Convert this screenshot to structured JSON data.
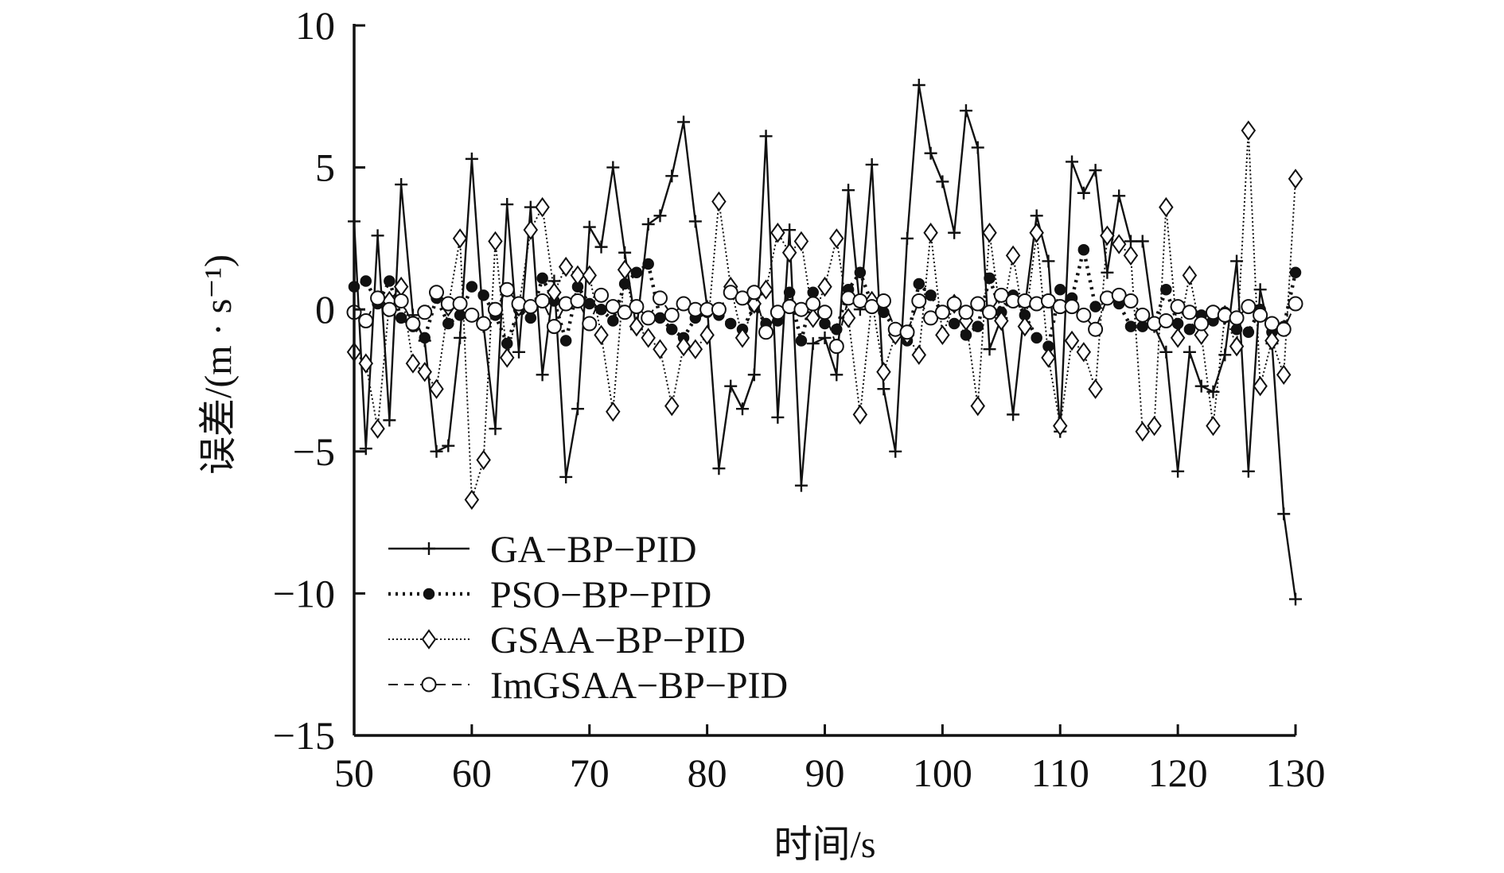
{
  "chart_data": {
    "type": "line",
    "title": "",
    "xlabel": "时间/s",
    "ylabel": "误差/(m · s⁻¹)",
    "xlim": [
      50,
      130
    ],
    "ylim": [
      -15,
      10
    ],
    "x_ticks": [
      50,
      60,
      70,
      80,
      90,
      100,
      110,
      120,
      130
    ],
    "x_tick_labels": [
      "50",
      "60",
      "70",
      "80",
      "90",
      "100",
      "110",
      "120",
      "130"
    ],
    "y_ticks": [
      10,
      5,
      0,
      -5,
      -10,
      -15
    ],
    "y_tick_labels": [
      "10",
      "5",
      "0",
      "−5",
      "−10",
      "−15"
    ],
    "grid": false,
    "legend_position": "bottom-left",
    "x": [
      50,
      51,
      52,
      53,
      54,
      55,
      56,
      57,
      58,
      59,
      60,
      61,
      62,
      63,
      64,
      65,
      66,
      67,
      68,
      69,
      70,
      71,
      72,
      73,
      74,
      75,
      76,
      77,
      78,
      79,
      80,
      81,
      82,
      83,
      84,
      85,
      86,
      87,
      88,
      89,
      90,
      91,
      92,
      93,
      94,
      95,
      96,
      97,
      98,
      99,
      100,
      101,
      102,
      103,
      104,
      105,
      106,
      107,
      108,
      109,
      110,
      111,
      112,
      113,
      114,
      115,
      116,
      117,
      118,
      119,
      120,
      121,
      122,
      123,
      124,
      125,
      126,
      127,
      128,
      129,
      130
    ],
    "series": [
      {
        "name": "GA−BP−PID",
        "marker": "plus",
        "dash": "solid",
        "values": [
          3.1,
          -4.9,
          2.6,
          -3.9,
          4.4,
          -0.2,
          -1.1,
          -5.0,
          -4.8,
          -1.0,
          5.3,
          -0.6,
          -4.2,
          3.7,
          -1.5,
          3.6,
          -2.3,
          1.0,
          -5.9,
          -3.5,
          2.9,
          2.2,
          5.0,
          2.0,
          -0.7,
          3.0,
          3.3,
          4.7,
          6.6,
          3.1,
          0.1,
          -5.6,
          -2.7,
          -3.5,
          -2.3,
          6.1,
          -3.8,
          2.8,
          -6.2,
          -1.2,
          -1.0,
          -2.3,
          4.2,
          0.0,
          5.1,
          -2.8,
          -5.0,
          2.5,
          7.9,
          5.5,
          4.5,
          2.7,
          7.0,
          5.7,
          -1.4,
          -0.3,
          -3.7,
          0.1,
          3.3,
          1.7,
          -4.3,
          5.2,
          4.1,
          4.9,
          1.3,
          4.0,
          2.4,
          2.4,
          -0.6,
          -1.5,
          -5.7,
          -1.5,
          -2.7,
          -2.9,
          -1.6,
          1.7,
          -5.7,
          0.7,
          -1.2,
          -7.2,
          -10.2
        ]
      },
      {
        "name": "PSO−BP−PID",
        "marker": "filled-circle",
        "dash": "dotted",
        "values": [
          0.8,
          1.0,
          0.2,
          1.0,
          -0.3,
          -0.6,
          -1.0,
          0.4,
          -0.5,
          -0.2,
          0.8,
          0.5,
          -0.2,
          -1.2,
          0.0,
          -0.3,
          1.1,
          0.3,
          -1.1,
          0.8,
          0.2,
          0.0,
          -0.4,
          0.9,
          1.3,
          1.6,
          -0.3,
          -0.7,
          -1.0,
          -0.3,
          -0.1,
          -0.2,
          -0.5,
          -0.7,
          0.1,
          -0.5,
          -0.4,
          0.6,
          -1.1,
          0.6,
          -0.5,
          -0.7,
          0.7,
          1.3,
          0.2,
          -0.1,
          -0.7,
          -1.1,
          0.9,
          0.5,
          -0.1,
          -0.5,
          -0.9,
          -0.6,
          1.1,
          -0.1,
          0.5,
          -0.2,
          -1.0,
          -1.3,
          0.7,
          0.4,
          2.1,
          0.1,
          0.4,
          0.2,
          -0.6,
          -0.6,
          -0.5,
          0.7,
          -0.5,
          -0.7,
          -0.2,
          -0.4,
          -0.1,
          -0.7,
          -0.8,
          0.0,
          -0.8,
          -0.6,
          1.3
        ]
      },
      {
        "name": "GSAA−BP−PID",
        "marker": "diamond",
        "dash": "dense-dotted",
        "values": [
          -1.5,
          -1.9,
          -4.2,
          0.3,
          0.8,
          -1.9,
          -2.2,
          -2.8,
          0.1,
          2.5,
          -6.7,
          -5.3,
          2.4,
          -1.7,
          0.1,
          2.8,
          3.6,
          0.6,
          1.5,
          1.2,
          1.2,
          -0.9,
          -3.6,
          1.4,
          -0.6,
          -1.0,
          -1.4,
          -3.4,
          -1.3,
          -1.4,
          -0.9,
          3.8,
          0.8,
          -1.0,
          0.2,
          0.7,
          2.7,
          2.0,
          2.4,
          -0.3,
          0.8,
          2.5,
          -0.3,
          -3.7,
          0.3,
          -2.2,
          -0.9,
          -0.9,
          -1.6,
          2.7,
          -0.9,
          0.2,
          -0.4,
          -3.4,
          2.7,
          -0.4,
          1.9,
          -0.6,
          2.7,
          -1.7,
          -4.1,
          -1.1,
          -1.5,
          -2.8,
          2.6,
          2.3,
          1.9,
          -4.3,
          -4.1,
          3.6,
          -1.0,
          1.2,
          -0.9,
          -4.1,
          -0.2,
          -1.3,
          6.3,
          -2.7,
          -1.1,
          -2.3,
          4.6
        ]
      },
      {
        "name": "ImGSAA−BP−PID",
        "marker": "open-circle",
        "dash": "dashed",
        "values": [
          -0.1,
          -0.4,
          0.4,
          0.0,
          0.3,
          -0.5,
          -0.1,
          0.6,
          0.2,
          0.2,
          -0.2,
          -0.5,
          0.0,
          0.7,
          0.2,
          0.1,
          0.3,
          -0.6,
          0.2,
          0.3,
          -0.5,
          0.5,
          0.1,
          -0.1,
          0.1,
          -0.3,
          0.4,
          -0.2,
          0.2,
          0.0,
          0.0,
          0.0,
          0.6,
          0.4,
          0.6,
          -0.8,
          -0.1,
          0.1,
          0.0,
          0.2,
          -0.1,
          -1.3,
          0.4,
          0.3,
          0.1,
          0.3,
          -0.7,
          -0.8,
          0.3,
          -0.3,
          -0.1,
          0.2,
          -0.1,
          0.2,
          -0.1,
          0.5,
          0.3,
          0.3,
          0.2,
          0.3,
          0.1,
          0.1,
          -0.2,
          -0.7,
          0.4,
          0.5,
          0.3,
          -0.2,
          -0.5,
          -0.4,
          0.1,
          -0.1,
          -0.5,
          -0.1,
          -0.2,
          -0.3,
          0.1,
          -0.2,
          -0.5,
          -0.7,
          0.2
        ]
      }
    ]
  }
}
